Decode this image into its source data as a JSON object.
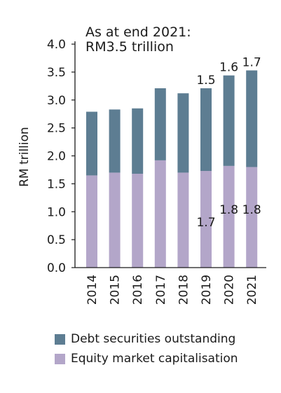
{
  "chart_data": {
    "type": "bar",
    "stacked": true,
    "categories": [
      "2014",
      "2015",
      "2016",
      "2017",
      "2018",
      "2019",
      "2020",
      "2021"
    ],
    "series": [
      {
        "name": "Equity market capitalisation",
        "color": "#b3a6c9",
        "values": [
          1.65,
          1.7,
          1.68,
          1.92,
          1.7,
          1.73,
          1.82,
          1.8
        ],
        "labels": [
          "",
          "",
          "",
          "",
          "",
          "1.7",
          "1.8",
          "1.8"
        ]
      },
      {
        "name": "Debt securities outstanding",
        "color": "#5d7d92",
        "values": [
          1.14,
          1.13,
          1.17,
          1.29,
          1.42,
          1.48,
          1.62,
          1.73
        ],
        "labels": [
          "",
          "",
          "",
          "",
          "",
          "1.5",
          "1.6",
          "1.7"
        ]
      }
    ],
    "ylabel": "RM trillion",
    "xlabel": "",
    "ylim": [
      0,
      4.0
    ],
    "yticks": [
      "0.0",
      "0.5",
      "1.0",
      "1.5",
      "2.0",
      "2.5",
      "3.0",
      "3.5",
      "4.0"
    ],
    "grid": false,
    "legend_position": "bottom",
    "annotation": [
      "As at end 2021:",
      "RM3.5 trillion"
    ]
  }
}
